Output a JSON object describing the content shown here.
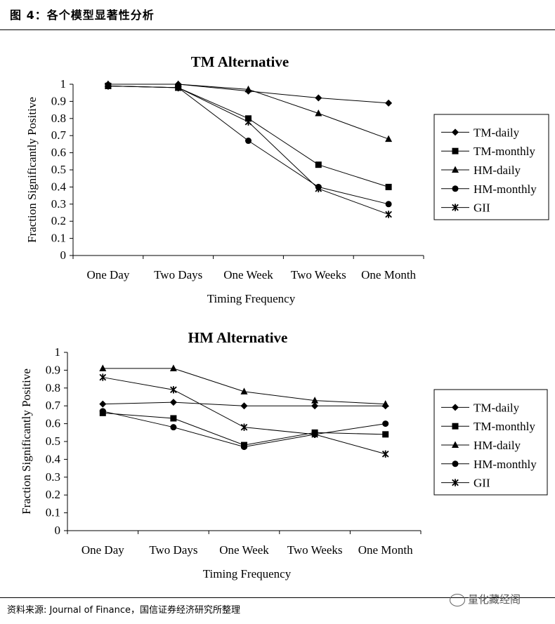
{
  "header": {
    "title": "图 4：各个模型显著性分析"
  },
  "footer": {
    "source": "资料来源: Journal of Finance，国信证券经济研究所整理"
  },
  "watermark": {
    "text": "量化藏经阁"
  },
  "chart_data": [
    {
      "type": "line",
      "title": "TM Alternative",
      "xlabel": "Timing Frequency",
      "ylabel": "Fraction Significantly Positive",
      "categories": [
        "One Day",
        "Two Days",
        "One Week",
        "Two Weeks",
        "One Month"
      ],
      "yticks": [
        "0",
        "0.1",
        "0.2",
        "0.3",
        "0.4",
        "0.5",
        "0.6",
        "0.7",
        "0.8",
        "0.9",
        "1"
      ],
      "ylim": [
        0,
        1
      ],
      "legend_position": "right",
      "series": [
        {
          "name": "TM-daily",
          "marker": "diamond",
          "values": [
            1.0,
            1.0,
            0.96,
            0.92,
            0.89
          ]
        },
        {
          "name": "TM-monthly",
          "marker": "square",
          "values": [
            0.99,
            0.98,
            0.8,
            0.53,
            0.4
          ]
        },
        {
          "name": "HM-daily",
          "marker": "triangle",
          "values": [
            1.0,
            1.0,
            0.97,
            0.83,
            0.68
          ]
        },
        {
          "name": "HM-monthly",
          "marker": "circle",
          "values": [
            0.99,
            0.98,
            0.67,
            0.4,
            0.3
          ]
        },
        {
          "name": "GII",
          "marker": "star",
          "values": [
            0.99,
            0.98,
            0.78,
            0.39,
            0.24
          ]
        }
      ]
    },
    {
      "type": "line",
      "title": "HM Alternative",
      "xlabel": "Timing Frequency",
      "ylabel": "Fraction Significantly Positive",
      "categories": [
        "One Day",
        "Two Days",
        "One Week",
        "Two Weeks",
        "One Month"
      ],
      "yticks": [
        "0",
        "0.1",
        "0.2",
        "0.3",
        "0.4",
        "0.5",
        "0.6",
        "0.7",
        "0.8",
        "0.9",
        "1"
      ],
      "ylim": [
        0,
        1
      ],
      "legend_position": "right",
      "series": [
        {
          "name": "TM-daily",
          "marker": "diamond",
          "values": [
            0.71,
            0.72,
            0.7,
            0.7,
            0.7
          ]
        },
        {
          "name": "TM-monthly",
          "marker": "square",
          "values": [
            0.66,
            0.63,
            0.48,
            0.55,
            0.54
          ]
        },
        {
          "name": "HM-daily",
          "marker": "triangle",
          "values": [
            0.91,
            0.91,
            0.78,
            0.73,
            0.71
          ]
        },
        {
          "name": "HM-monthly",
          "marker": "circle",
          "values": [
            0.67,
            0.58,
            0.47,
            0.54,
            0.6
          ]
        },
        {
          "name": "GII",
          "marker": "star",
          "values": [
            0.86,
            0.79,
            0.58,
            0.54,
            0.43
          ]
        }
      ]
    }
  ]
}
